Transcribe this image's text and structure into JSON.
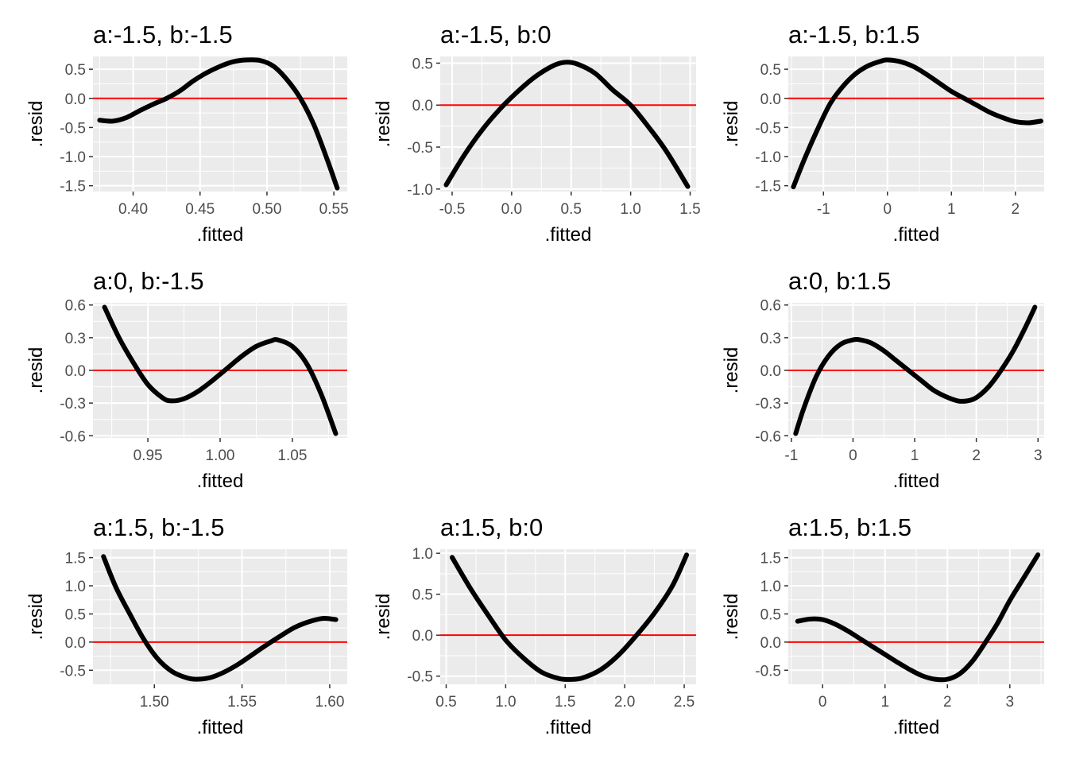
{
  "figure": {
    "background": "#ffffff",
    "panel_background": "#ebebeb",
    "grid_color": "#ffffff",
    "reference_line_color": "#ff0000",
    "curve_color": "#000000"
  },
  "chart_data": [
    {
      "type": "line",
      "title": "a:-1.5, b:-1.5",
      "xlabel": ".fitted",
      "ylabel": ".resid",
      "xlim": [
        0.37,
        0.56
      ],
      "ylim": [
        -1.6,
        0.72
      ],
      "xticks": [
        0.4,
        0.45,
        0.5,
        0.55
      ],
      "xtick_labels": [
        "0.40",
        "0.45",
        "0.50",
        "0.55"
      ],
      "yticks": [
        0.5,
        0.0,
        -0.5,
        -1.0,
        -1.5
      ],
      "ytick_labels": [
        "0.5",
        "0.0",
        "-0.5",
        "-1.0",
        "-1.5"
      ],
      "hline": 0,
      "grid": true,
      "series": [
        {
          "x": [
            0.375,
            0.385,
            0.395,
            0.405,
            0.415,
            0.425,
            0.435,
            0.445,
            0.455,
            0.465,
            0.475,
            0.485,
            0.495,
            0.505,
            0.515,
            0.525,
            0.535,
            0.545,
            0.5525
          ],
          "y": [
            -0.375,
            -0.39,
            -0.33,
            -0.21,
            -0.1,
            0.0,
            0.13,
            0.3,
            0.44,
            0.55,
            0.63,
            0.66,
            0.65,
            0.55,
            0.32,
            0.0,
            -0.45,
            -1.05,
            -1.54
          ]
        }
      ]
    },
    {
      "type": "line",
      "title": "a:-1.5, b:0",
      "xlabel": ".fitted",
      "ylabel": ".resid",
      "xlim": [
        -0.6,
        1.55
      ],
      "ylim": [
        -1.03,
        0.58
      ],
      "xticks": [
        -0.5,
        0.0,
        0.5,
        1.0,
        1.5
      ],
      "xtick_labels": [
        "-0.5",
        "0.0",
        "0.5",
        "1.0",
        "1.5"
      ],
      "yticks": [
        0.5,
        0.0,
        -0.5,
        -1.0
      ],
      "ytick_labels": [
        "0.5",
        "0.0",
        "-0.5",
        "-1.0"
      ],
      "hline": 0,
      "grid": true,
      "series": [
        {
          "x": [
            -0.55,
            -0.4,
            -0.25,
            -0.1,
            0.05,
            0.2,
            0.35,
            0.45,
            0.55,
            0.7,
            0.85,
            1.0,
            1.15,
            1.3,
            1.48
          ],
          "y": [
            -0.95,
            -0.6,
            -0.3,
            -0.05,
            0.16,
            0.34,
            0.47,
            0.51,
            0.49,
            0.38,
            0.18,
            0.0,
            -0.26,
            -0.55,
            -0.97
          ]
        }
      ]
    },
    {
      "type": "line",
      "title": "a:-1.5, b:1.5",
      "xlabel": ".fitted",
      "ylabel": ".resid",
      "xlim": [
        -1.55,
        2.45
      ],
      "ylim": [
        -1.6,
        0.72
      ],
      "xticks": [
        -1,
        0,
        1,
        2
      ],
      "xtick_labels": [
        "-1",
        "0",
        "1",
        "2"
      ],
      "yticks": [
        0.5,
        0.0,
        -0.5,
        -1.0,
        -1.5
      ],
      "ytick_labels": [
        "0.5",
        "0.0",
        "-0.5",
        "-1.0",
        "-1.5"
      ],
      "hline": 0,
      "grid": true,
      "series": [
        {
          "x": [
            -1.47,
            -1.3,
            -1.1,
            -0.9,
            -0.7,
            -0.5,
            -0.3,
            -0.1,
            0.0,
            0.2,
            0.4,
            0.6,
            0.8,
            1.0,
            1.2,
            1.4,
            1.6,
            1.8,
            2.0,
            2.2,
            2.4
          ],
          "y": [
            -1.52,
            -1.05,
            -0.55,
            -0.1,
            0.2,
            0.42,
            0.56,
            0.64,
            0.66,
            0.63,
            0.55,
            0.42,
            0.27,
            0.12,
            0.0,
            -0.12,
            -0.24,
            -0.33,
            -0.4,
            -0.42,
            -0.39
          ]
        }
      ]
    },
    {
      "type": "line",
      "title": "a:0, b:-1.5",
      "xlabel": ".fitted",
      "ylabel": ".resid",
      "xlim": [
        0.912,
        1.088
      ],
      "ylim": [
        -0.62,
        0.62
      ],
      "xticks": [
        0.95,
        1.0,
        1.05
      ],
      "xtick_labels": [
        "0.95",
        "1.00",
        "1.05"
      ],
      "yticks": [
        0.6,
        0.3,
        0.0,
        -0.3,
        -0.6
      ],
      "ytick_labels": [
        "0.6",
        "0.3",
        "0.0",
        "-0.3",
        "-0.6"
      ],
      "hline": 0,
      "grid": true,
      "series": [
        {
          "x": [
            0.92,
            0.93,
            0.94,
            0.95,
            0.96,
            0.966,
            0.975,
            0.985,
            0.995,
            1.005,
            1.015,
            1.025,
            1.035,
            1.04,
            1.05,
            1.06,
            1.07,
            1.08
          ],
          "y": [
            0.58,
            0.3,
            0.07,
            -0.13,
            -0.25,
            -0.28,
            -0.26,
            -0.19,
            -0.09,
            0.02,
            0.13,
            0.22,
            0.27,
            0.28,
            0.22,
            0.06,
            -0.22,
            -0.58
          ]
        }
      ]
    },
    {
      "type": "line",
      "title": "a:0, b:1.5",
      "xlabel": ".fitted",
      "ylabel": ".resid",
      "xlim": [
        -1.05,
        3.1
      ],
      "ylim": [
        -0.62,
        0.62
      ],
      "xticks": [
        -1,
        0,
        1,
        2,
        3
      ],
      "xtick_labels": [
        "-1",
        "0",
        "1",
        "2",
        "3"
      ],
      "yticks": [
        0.6,
        0.3,
        0.0,
        -0.3,
        -0.6
      ],
      "ytick_labels": [
        "0.6",
        "0.3",
        "0.0",
        "-0.3",
        "-0.6"
      ],
      "hline": 0,
      "grid": true,
      "series": [
        {
          "x": [
            -0.93,
            -0.8,
            -0.6,
            -0.4,
            -0.2,
            0.0,
            0.12,
            0.3,
            0.5,
            0.7,
            0.9,
            1.1,
            1.3,
            1.5,
            1.7,
            1.85,
            2.0,
            2.2,
            2.4,
            2.6,
            2.8,
            2.95
          ],
          "y": [
            -0.58,
            -0.35,
            -0.06,
            0.13,
            0.24,
            0.28,
            0.28,
            0.25,
            0.18,
            0.09,
            0.0,
            -0.09,
            -0.18,
            -0.24,
            -0.28,
            -0.28,
            -0.25,
            -0.15,
            0.0,
            0.18,
            0.4,
            0.58
          ]
        }
      ]
    },
    {
      "type": "line",
      "title": "a:1.5, b:-1.5",
      "xlabel": ".fitted",
      "ylabel": ".resid",
      "xlim": [
        1.465,
        1.61
      ],
      "ylim": [
        -0.75,
        1.65
      ],
      "xticks": [
        1.5,
        1.55,
        1.6
      ],
      "xtick_labels": [
        "1.50",
        "1.55",
        "1.60"
      ],
      "yticks": [
        1.5,
        1.0,
        0.5,
        0.0,
        -0.5
      ],
      "ytick_labels": [
        "1.5",
        "1.0",
        "0.5",
        "0.0",
        "-0.5"
      ],
      "hline": 0,
      "grid": true,
      "series": [
        {
          "x": [
            1.471,
            1.478,
            1.486,
            1.494,
            1.502,
            1.51,
            1.518,
            1.524,
            1.532,
            1.54,
            1.548,
            1.556,
            1.564,
            1.572,
            1.58,
            1.588,
            1.596,
            1.6035
          ],
          "y": [
            1.52,
            0.98,
            0.5,
            0.05,
            -0.3,
            -0.52,
            -0.63,
            -0.66,
            -0.63,
            -0.53,
            -0.39,
            -0.22,
            -0.05,
            0.11,
            0.26,
            0.36,
            0.42,
            0.4
          ]
        }
      ]
    },
    {
      "type": "line",
      "title": "a:1.5, b:0",
      "xlabel": ".fitted",
      "ylabel": ".resid",
      "xlim": [
        0.45,
        2.6
      ],
      "ylim": [
        -0.6,
        1.05
      ],
      "xticks": [
        0.5,
        1.0,
        1.5,
        2.0,
        2.5
      ],
      "xtick_labels": [
        "0.5",
        "1.0",
        "1.5",
        "2.0",
        "2.5"
      ],
      "yticks": [
        1.0,
        0.5,
        0.0,
        -0.5
      ],
      "ytick_labels": [
        "1.0",
        "0.5",
        "0.0",
        "-0.5"
      ],
      "hline": 0,
      "grid": true,
      "series": [
        {
          "x": [
            0.55,
            0.7,
            0.85,
            1.0,
            1.15,
            1.3,
            1.45,
            1.55,
            1.65,
            1.8,
            1.95,
            2.1,
            2.25,
            2.4,
            2.52
          ],
          "y": [
            0.95,
            0.58,
            0.25,
            -0.06,
            -0.28,
            -0.45,
            -0.53,
            -0.54,
            -0.52,
            -0.42,
            -0.24,
            0.0,
            0.27,
            0.6,
            0.98
          ]
        }
      ]
    },
    {
      "type": "line",
      "title": "a:1.5, b:1.5",
      "xlabel": ".fitted",
      "ylabel": ".resid",
      "xlim": [
        -0.55,
        3.55
      ],
      "ylim": [
        -0.75,
        1.65
      ],
      "xticks": [
        0,
        1,
        2,
        3
      ],
      "xtick_labels": [
        "0",
        "1",
        "2",
        "3"
      ],
      "yticks": [
        1.5,
        1.0,
        0.5,
        0.0,
        -0.5
      ],
      "ytick_labels": [
        "1.5",
        "1.0",
        "0.5",
        "0.0",
        "-0.5"
      ],
      "hline": 0,
      "grid": true,
      "series": [
        {
          "x": [
            -0.4,
            -0.2,
            0.0,
            0.2,
            0.4,
            0.6,
            0.8,
            1.0,
            1.2,
            1.4,
            1.6,
            1.8,
            2.0,
            2.2,
            2.4,
            2.6,
            2.8,
            3.0,
            3.2,
            3.45
          ],
          "y": [
            0.37,
            0.41,
            0.4,
            0.32,
            0.2,
            0.06,
            -0.08,
            -0.22,
            -0.36,
            -0.49,
            -0.6,
            -0.66,
            -0.66,
            -0.56,
            -0.34,
            -0.02,
            0.33,
            0.74,
            1.1,
            1.55
          ]
        }
      ]
    }
  ]
}
